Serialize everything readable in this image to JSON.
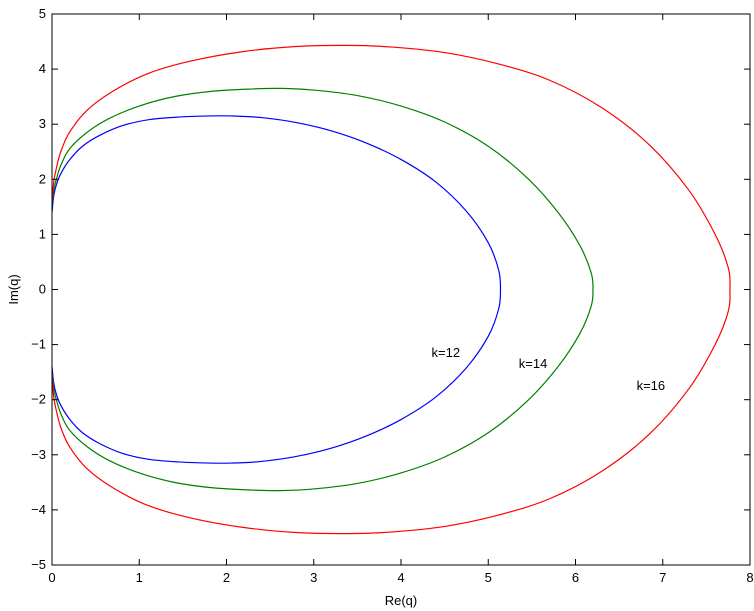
{
  "chart_data": {
    "type": "line",
    "title": "",
    "xlabel": "Re(q)",
    "ylabel": "Im(q)",
    "xlim": [
      0,
      8
    ],
    "ylim": [
      -5,
      5
    ],
    "xticks": [
      0,
      1,
      2,
      3,
      4,
      5,
      6,
      7,
      8
    ],
    "yticks": [
      -5,
      -4,
      -3,
      -2,
      -1,
      0,
      1,
      2,
      3,
      4,
      5
    ],
    "grid": false,
    "series": [
      {
        "color": "#0000ff",
        "x": [
          0,
          0.02,
          0.05,
          0.1,
          0.2,
          0.35,
          0.55,
          0.8,
          1.1,
          1.45,
          1.8,
          2.06,
          2.4,
          2.8,
          3.2,
          3.6,
          4.0,
          4.4,
          4.75,
          5.0,
          5.12,
          5.14,
          5.12,
          5.0,
          4.75,
          4.4,
          4.0,
          3.6,
          3.2,
          2.8,
          2.4,
          2.06,
          1.8,
          1.45,
          1.1,
          0.8,
          0.55,
          0.35,
          0.2,
          0.1,
          0.05,
          0.02,
          0
        ],
        "y": [
          1.4,
          1.7,
          1.9,
          2.1,
          2.35,
          2.6,
          2.8,
          2.97,
          3.08,
          3.13,
          3.15,
          3.15,
          3.12,
          3.03,
          2.88,
          2.66,
          2.36,
          1.95,
          1.42,
          0.85,
          0.35,
          0.0,
          -0.35,
          -0.85,
          -1.42,
          -1.95,
          -2.36,
          -2.66,
          -2.88,
          -3.03,
          -3.12,
          -3.15,
          -3.15,
          -3.13,
          -3.08,
          -2.97,
          -2.8,
          -2.6,
          -2.35,
          -2.1,
          -1.9,
          -1.7,
          -1.4
        ]
      },
      {
        "color": "#008000",
        "x": [
          0,
          0.02,
          0.05,
          0.1,
          0.2,
          0.4,
          0.65,
          1.0,
          1.4,
          1.85,
          2.3,
          2.62,
          3.0,
          3.5,
          4.0,
          4.5,
          5.0,
          5.45,
          5.8,
          6.05,
          6.18,
          6.2,
          6.18,
          6.05,
          5.8,
          5.45,
          5.0,
          4.5,
          4.0,
          3.5,
          3.0,
          2.62,
          2.3,
          1.85,
          1.4,
          1.0,
          0.65,
          0.4,
          0.2,
          0.1,
          0.05,
          0.02,
          0
        ],
        "y": [
          1.5,
          1.8,
          2.0,
          2.25,
          2.55,
          2.85,
          3.1,
          3.33,
          3.5,
          3.6,
          3.64,
          3.65,
          3.62,
          3.52,
          3.33,
          3.04,
          2.6,
          2.02,
          1.4,
          0.8,
          0.3,
          0.0,
          -0.3,
          -0.8,
          -1.4,
          -2.02,
          -2.6,
          -3.04,
          -3.33,
          -3.52,
          -3.62,
          -3.65,
          -3.64,
          -3.6,
          -3.5,
          -3.33,
          -3.1,
          -2.85,
          -2.55,
          -2.25,
          -2.0,
          -1.8,
          -1.5
        ]
      },
      {
        "color": "#ff0000",
        "x": [
          0,
          0.02,
          0.05,
          0.1,
          0.2,
          0.4,
          0.7,
          1.1,
          1.6,
          2.2,
          2.8,
          3.38,
          3.9,
          4.5,
          5.1,
          5.7,
          6.3,
          6.85,
          7.3,
          7.6,
          7.75,
          7.77,
          7.75,
          7.6,
          7.3,
          6.85,
          6.3,
          5.7,
          5.1,
          4.5,
          3.9,
          3.38,
          2.8,
          2.2,
          1.6,
          1.1,
          0.7,
          0.4,
          0.2,
          0.1,
          0.05,
          0.02,
          0
        ],
        "y": [
          1.6,
          1.95,
          2.2,
          2.5,
          2.85,
          3.25,
          3.6,
          3.92,
          4.15,
          4.32,
          4.41,
          4.43,
          4.4,
          4.3,
          4.1,
          3.8,
          3.3,
          2.62,
          1.8,
          1.0,
          0.4,
          0.0,
          -0.4,
          -1.0,
          -1.8,
          -2.62,
          -3.3,
          -3.8,
          -4.1,
          -4.3,
          -4.4,
          -4.43,
          -4.41,
          -4.32,
          -4.15,
          -3.92,
          -3.6,
          -3.25,
          -2.85,
          -2.5,
          -2.2,
          -1.95,
          -1.6
        ]
      }
    ],
    "annotations": [
      {
        "text": "k=12",
        "x": 4.35,
        "y": -1.15
      },
      {
        "text": "k=14",
        "x": 5.35,
        "y": -1.35
      },
      {
        "text": "k=16",
        "x": 6.7,
        "y": -1.75
      }
    ]
  }
}
